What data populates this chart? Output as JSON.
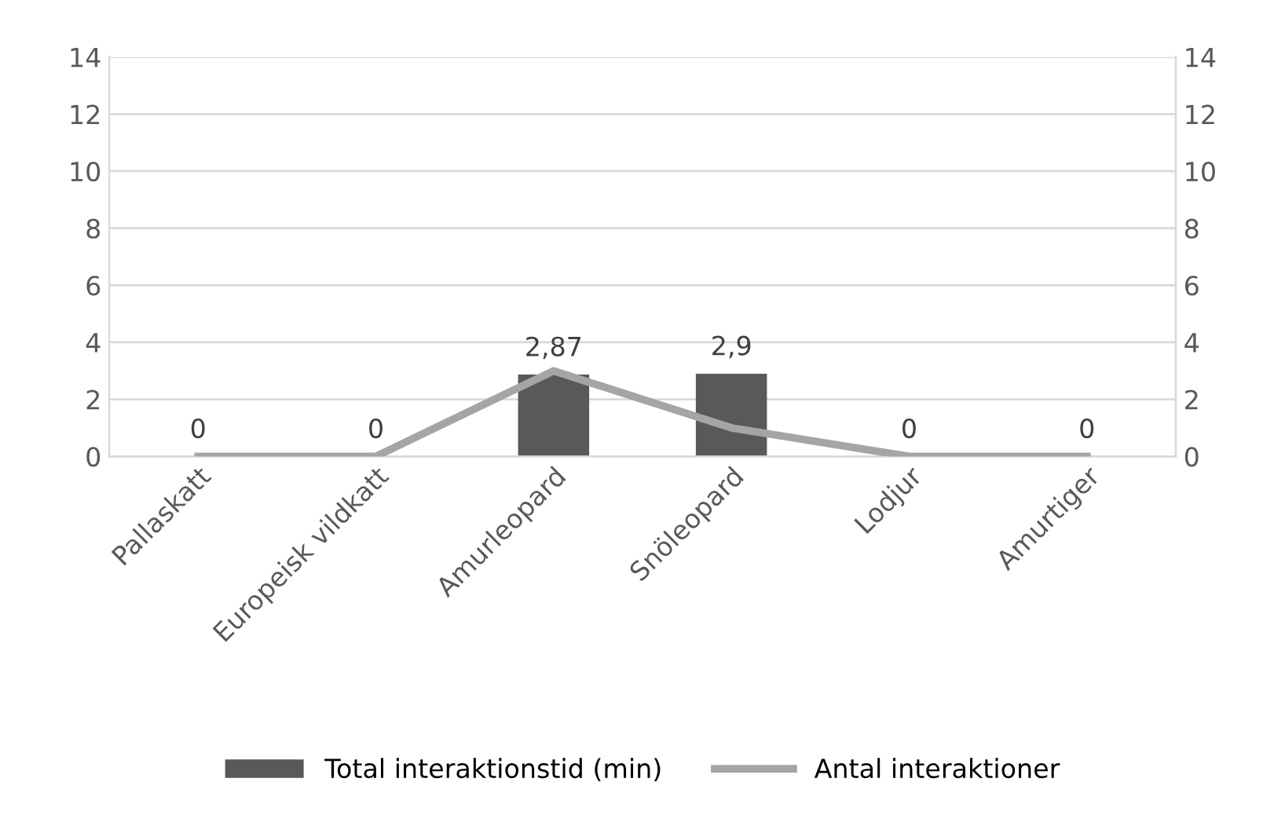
{
  "chart_data": {
    "type": "bar",
    "categories": [
      "Pallaskatt",
      "Europeisk vildkatt",
      "Amurleopard",
      "Snöleopard",
      "Lodjur",
      "Amurtiger"
    ],
    "series": [
      {
        "name": "Total interaktionstid (min)",
        "color": "#595959",
        "values": [
          0,
          0,
          2.87,
          2.9,
          0,
          0
        ],
        "value_labels": [
          "0",
          "0",
          "2,87",
          "2,9",
          "0",
          "0"
        ]
      },
      {
        "name": "Antal interaktioner",
        "type": "line",
        "axis": "y2",
        "color": "#a5a5a5",
        "values": [
          0,
          0,
          3,
          1,
          0,
          0
        ]
      }
    ],
    "ylim": [
      0,
      14
    ],
    "yticks": [
      0,
      2,
      4,
      6,
      8,
      10,
      12,
      14
    ],
    "y2lim": [
      0,
      14
    ],
    "y2ticks": [
      0,
      2,
      4,
      6,
      8,
      10,
      12,
      14
    ],
    "grid": "y",
    "legend": "bottom",
    "marker": "none",
    "line_style": "solid"
  }
}
